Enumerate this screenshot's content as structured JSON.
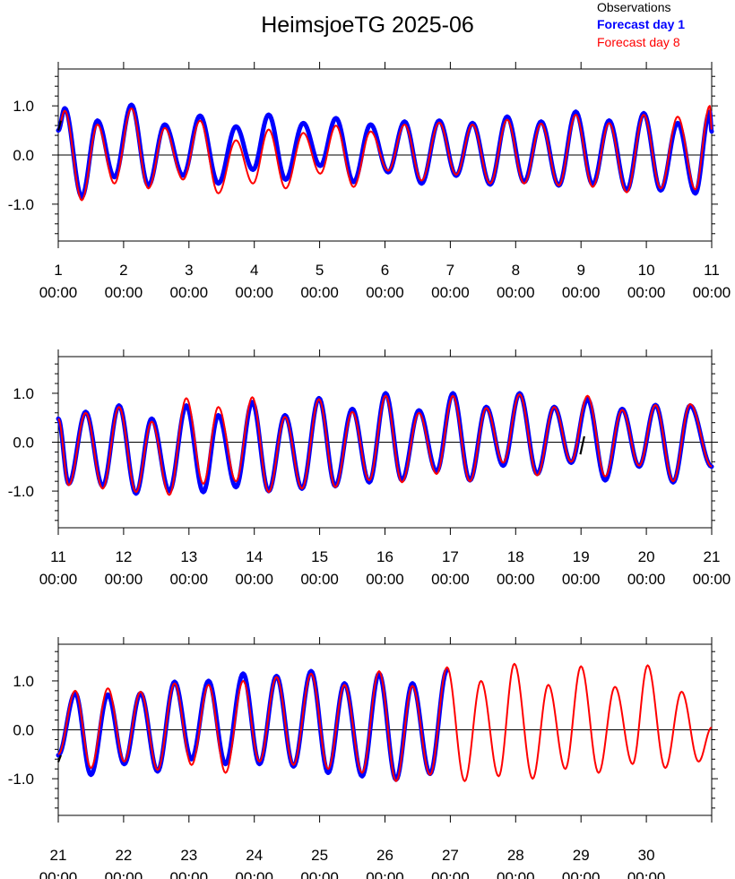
{
  "chart_data": {
    "type": "line",
    "title": "HeimsjoeTG 2025-06",
    "legend": {
      "placement": "top-right",
      "entries": [
        {
          "label": "Observations",
          "color": "#000000"
        },
        {
          "label": "Forecast day 1",
          "color": "#0000ff"
        },
        {
          "label": "Forecast day 8",
          "color": "#ff0000"
        }
      ]
    },
    "colors": {
      "observations": "#000000",
      "forecast_day_1": "#0000ff",
      "forecast_day_8": "#ff0000"
    },
    "ylim": [
      -1.75,
      1.75
    ],
    "yticks": [
      -1.0,
      0.0,
      1.0
    ],
    "ytick_labels": [
      "-1.0",
      "0.0",
      "1.0"
    ],
    "time_label": "00:00",
    "panels": [
      {
        "xlim": [
          1,
          11
        ],
        "xticks": [
          1,
          2,
          3,
          4,
          5,
          6,
          7,
          8,
          9,
          10,
          11
        ],
        "xtick_labels": [
          "1",
          "2",
          "3",
          "4",
          "5",
          "6",
          "7",
          "8",
          "9",
          "10",
          "11"
        ],
        "fc1_end": 11,
        "fc8_end": 11,
        "extrema": [
          {
            "t": 1.1,
            "fc1": 0.95,
            "fc8": 0.9
          },
          {
            "t": 1.36,
            "fc1": -0.85,
            "fc8": -0.92
          },
          {
            "t": 1.6,
            "fc1": 0.7,
            "fc8": 0.62
          },
          {
            "t": 1.86,
            "fc1": -0.45,
            "fc8": -0.58
          },
          {
            "t": 2.12,
            "fc1": 1.02,
            "fc8": 0.95
          },
          {
            "t": 2.38,
            "fc1": -0.62,
            "fc8": -0.68
          },
          {
            "t": 2.63,
            "fc1": 0.62,
            "fc8": 0.55
          },
          {
            "t": 2.91,
            "fc1": -0.42,
            "fc8": -0.5
          },
          {
            "t": 3.17,
            "fc1": 0.8,
            "fc8": 0.7
          },
          {
            "t": 3.45,
            "fc1": -0.58,
            "fc8": -0.78
          },
          {
            "t": 3.72,
            "fc1": 0.58,
            "fc8": 0.3
          },
          {
            "t": 3.98,
            "fc1": -0.3,
            "fc8": -0.58
          },
          {
            "t": 4.22,
            "fc1": 0.82,
            "fc8": 0.52
          },
          {
            "t": 4.48,
            "fc1": -0.5,
            "fc8": -0.68
          },
          {
            "t": 4.75,
            "fc1": 0.65,
            "fc8": 0.45
          },
          {
            "t": 5.01,
            "fc1": -0.22,
            "fc8": -0.38
          },
          {
            "t": 5.25,
            "fc1": 0.75,
            "fc8": 0.6
          },
          {
            "t": 5.52,
            "fc1": -0.55,
            "fc8": -0.65
          },
          {
            "t": 5.78,
            "fc1": 0.62,
            "fc8": 0.48
          },
          {
            "t": 6.05,
            "fc1": -0.35,
            "fc8": -0.32
          },
          {
            "t": 6.3,
            "fc1": 0.68,
            "fc8": 0.62
          },
          {
            "t": 6.56,
            "fc1": -0.58,
            "fc8": -0.52
          },
          {
            "t": 6.83,
            "fc1": 0.7,
            "fc8": 0.66
          },
          {
            "t": 7.09,
            "fc1": -0.42,
            "fc8": -0.4
          },
          {
            "t": 7.34,
            "fc1": 0.65,
            "fc8": 0.62
          },
          {
            "t": 7.61,
            "fc1": -0.6,
            "fc8": -0.58
          },
          {
            "t": 7.87,
            "fc1": 0.78,
            "fc8": 0.72
          },
          {
            "t": 8.13,
            "fc1": -0.55,
            "fc8": -0.58
          },
          {
            "t": 8.39,
            "fc1": 0.68,
            "fc8": 0.64
          },
          {
            "t": 8.66,
            "fc1": -0.62,
            "fc8": -0.62
          },
          {
            "t": 8.92,
            "fc1": 0.88,
            "fc8": 0.82
          },
          {
            "t": 9.18,
            "fc1": -0.6,
            "fc8": -0.65
          },
          {
            "t": 9.43,
            "fc1": 0.7,
            "fc8": 0.65
          },
          {
            "t": 9.7,
            "fc1": -0.72,
            "fc8": -0.76
          },
          {
            "t": 9.96,
            "fc1": 0.85,
            "fc8": 0.82
          },
          {
            "t": 10.22,
            "fc1": -0.72,
            "fc8": -0.68
          },
          {
            "t": 10.48,
            "fc1": 0.65,
            "fc8": 0.78
          },
          {
            "t": 10.75,
            "fc1": -0.78,
            "fc8": -0.7
          },
          {
            "t": 10.97,
            "fc1": 0.88,
            "fc8": 1.0
          }
        ],
        "start": {
          "t": 1.0,
          "fc1": 0.5,
          "fc8": 0.55
        },
        "end": {
          "t": 11.0,
          "fc1": 0.48,
          "fc8": 0.52
        },
        "obs": [
          [
            [
              1.0,
              0.5
            ],
            [
              1.04,
              0.7
            ]
          ]
        ]
      },
      {
        "xlim": [
          11,
          21
        ],
        "xticks": [
          11,
          12,
          13,
          14,
          15,
          16,
          17,
          18,
          19,
          20,
          21
        ],
        "xtick_labels": [
          "11",
          "12",
          "13",
          "14",
          "15",
          "16",
          "17",
          "18",
          "19",
          "20",
          "21"
        ],
        "fc1_end": 21,
        "fc8_end": 21,
        "extrema": [
          {
            "t": 11.16,
            "fc1": -0.85,
            "fc8": -0.88
          },
          {
            "t": 11.42,
            "fc1": 0.62,
            "fc8": 0.6
          },
          {
            "t": 11.68,
            "fc1": -0.9,
            "fc8": -0.95
          },
          {
            "t": 11.93,
            "fc1": 0.75,
            "fc8": 0.72
          },
          {
            "t": 12.19,
            "fc1": -1.05,
            "fc8": -1.02
          },
          {
            "t": 12.43,
            "fc1": 0.48,
            "fc8": 0.42
          },
          {
            "t": 12.7,
            "fc1": -1.0,
            "fc8": -1.08
          },
          {
            "t": 12.96,
            "fc1": 0.75,
            "fc8": 0.9
          },
          {
            "t": 13.22,
            "fc1": -1.02,
            "fc8": -0.85
          },
          {
            "t": 13.45,
            "fc1": 0.55,
            "fc8": 0.72
          },
          {
            "t": 13.72,
            "fc1": -0.92,
            "fc8": -0.8
          },
          {
            "t": 13.97,
            "fc1": 0.82,
            "fc8": 0.92
          },
          {
            "t": 14.22,
            "fc1": -1.0,
            "fc8": -1.02
          },
          {
            "t": 14.47,
            "fc1": 0.55,
            "fc8": 0.52
          },
          {
            "t": 14.73,
            "fc1": -0.95,
            "fc8": -0.95
          },
          {
            "t": 14.99,
            "fc1": 0.9,
            "fc8": 0.88
          },
          {
            "t": 15.24,
            "fc1": -0.9,
            "fc8": -0.92
          },
          {
            "t": 15.5,
            "fc1": 0.68,
            "fc8": 0.62
          },
          {
            "t": 15.76,
            "fc1": -0.82,
            "fc8": -0.78
          },
          {
            "t": 16.01,
            "fc1": 1.0,
            "fc8": 0.95
          },
          {
            "t": 16.26,
            "fc1": -0.78,
            "fc8": -0.82
          },
          {
            "t": 16.52,
            "fc1": 0.65,
            "fc8": 0.6
          },
          {
            "t": 16.79,
            "fc1": -0.6,
            "fc8": -0.65
          },
          {
            "t": 17.04,
            "fc1": 1.0,
            "fc8": 0.95
          },
          {
            "t": 17.3,
            "fc1": -0.78,
            "fc8": -0.8
          },
          {
            "t": 17.55,
            "fc1": 0.72,
            "fc8": 0.7
          },
          {
            "t": 17.81,
            "fc1": -0.48,
            "fc8": -0.42
          },
          {
            "t": 18.06,
            "fc1": 1.0,
            "fc8": 0.98
          },
          {
            "t": 18.33,
            "fc1": -0.65,
            "fc8": -0.68
          },
          {
            "t": 18.59,
            "fc1": 0.72,
            "fc8": 0.72
          },
          {
            "t": 18.85,
            "fc1": -0.42,
            "fc8": -0.4
          },
          {
            "t": 19.1,
            "fc1": 0.88,
            "fc8": 0.95
          },
          {
            "t": 19.37,
            "fc1": -0.78,
            "fc8": -0.7
          },
          {
            "t": 19.63,
            "fc1": 0.68,
            "fc8": 0.66
          },
          {
            "t": 19.89,
            "fc1": -0.5,
            "fc8": -0.48
          },
          {
            "t": 20.14,
            "fc1": 0.76,
            "fc8": 0.76
          },
          {
            "t": 20.41,
            "fc1": -0.82,
            "fc8": -0.8
          },
          {
            "t": 20.67,
            "fc1": 0.75,
            "fc8": 0.78
          }
        ],
        "start": {
          "t": 11.0,
          "fc1": 0.48,
          "fc8": 0.48
        },
        "end": {
          "t": 21.0,
          "fc1": -0.5,
          "fc8": -0.5
        },
        "obs": [
          [
            [
              18.99,
              -0.25
            ],
            [
              19.05,
              0.12
            ]
          ]
        ]
      },
      {
        "xlim": [
          21,
          31
        ],
        "xticks": [
          21,
          22,
          23,
          24,
          25,
          26,
          27,
          28,
          29,
          30
        ],
        "xtick_labels": [
          "21",
          "22",
          "23",
          "24",
          "25",
          "26",
          "27",
          "28",
          "29",
          "30"
        ],
        "fc1_end": 27.0,
        "fc8_end": 31,
        "extrema": [
          {
            "t": 21.26,
            "fc1": 0.75,
            "fc8": 0.8
          },
          {
            "t": 21.5,
            "fc1": -0.92,
            "fc8": -0.78
          },
          {
            "t": 21.76,
            "fc1": 0.72,
            "fc8": 0.85
          },
          {
            "t": 22.01,
            "fc1": -0.7,
            "fc8": -0.65
          },
          {
            "t": 22.26,
            "fc1": 0.75,
            "fc8": 0.78
          },
          {
            "t": 22.52,
            "fc1": -0.85,
            "fc8": -0.82
          },
          {
            "t": 22.78,
            "fc1": 0.98,
            "fc8": 0.95
          },
          {
            "t": 23.04,
            "fc1": -0.6,
            "fc8": -0.72
          },
          {
            "t": 23.3,
            "fc1": 1.0,
            "fc8": 0.92
          },
          {
            "t": 23.56,
            "fc1": -0.7,
            "fc8": -0.88
          },
          {
            "t": 23.83,
            "fc1": 1.15,
            "fc8": 1.0
          },
          {
            "t": 24.08,
            "fc1": -0.7,
            "fc8": -0.65
          },
          {
            "t": 24.34,
            "fc1": 1.1,
            "fc8": 1.08
          },
          {
            "t": 24.6,
            "fc1": -0.75,
            "fc8": -0.72
          },
          {
            "t": 24.87,
            "fc1": 1.2,
            "fc8": 1.15
          },
          {
            "t": 25.13,
            "fc1": -0.88,
            "fc8": -0.8
          },
          {
            "t": 25.38,
            "fc1": 0.95,
            "fc8": 0.92
          },
          {
            "t": 25.65,
            "fc1": -0.95,
            "fc8": -0.88
          },
          {
            "t": 25.91,
            "fc1": 1.15,
            "fc8": 1.2
          },
          {
            "t": 26.17,
            "fc1": -1.02,
            "fc8": -1.05
          },
          {
            "t": 26.42,
            "fc1": 0.95,
            "fc8": 0.9
          },
          {
            "t": 26.69,
            "fc1": -0.9,
            "fc8": -0.92
          },
          {
            "t": 26.95,
            "fc1": 1.22,
            "fc8": 1.28
          },
          {
            "t": 27.22,
            "fc8": -1.05
          },
          {
            "t": 27.47,
            "fc8": 1.0
          },
          {
            "t": 27.74,
            "fc8": -0.95
          },
          {
            "t": 27.98,
            "fc8": 1.35
          },
          {
            "t": 28.26,
            "fc8": -1.0
          },
          {
            "t": 28.5,
            "fc8": 0.92
          },
          {
            "t": 28.76,
            "fc8": -0.8
          },
          {
            "t": 29.0,
            "fc8": 1.3
          },
          {
            "t": 29.27,
            "fc8": -0.88
          },
          {
            "t": 29.52,
            "fc8": 0.88
          },
          {
            "t": 29.79,
            "fc8": -0.7
          },
          {
            "t": 30.02,
            "fc8": 1.32
          },
          {
            "t": 30.29,
            "fc8": -0.78
          },
          {
            "t": 30.54,
            "fc8": 0.78
          },
          {
            "t": 30.8,
            "fc8": -0.65
          }
        ],
        "start": {
          "t": 21.0,
          "fc1": -0.52,
          "fc8": -0.5
        },
        "end": {
          "t": 31.0,
          "fc8": 0.05
        },
        "obs": [
          [
            [
              21.0,
              -0.66
            ],
            [
              21.04,
              -0.52
            ]
          ]
        ]
      }
    ]
  }
}
